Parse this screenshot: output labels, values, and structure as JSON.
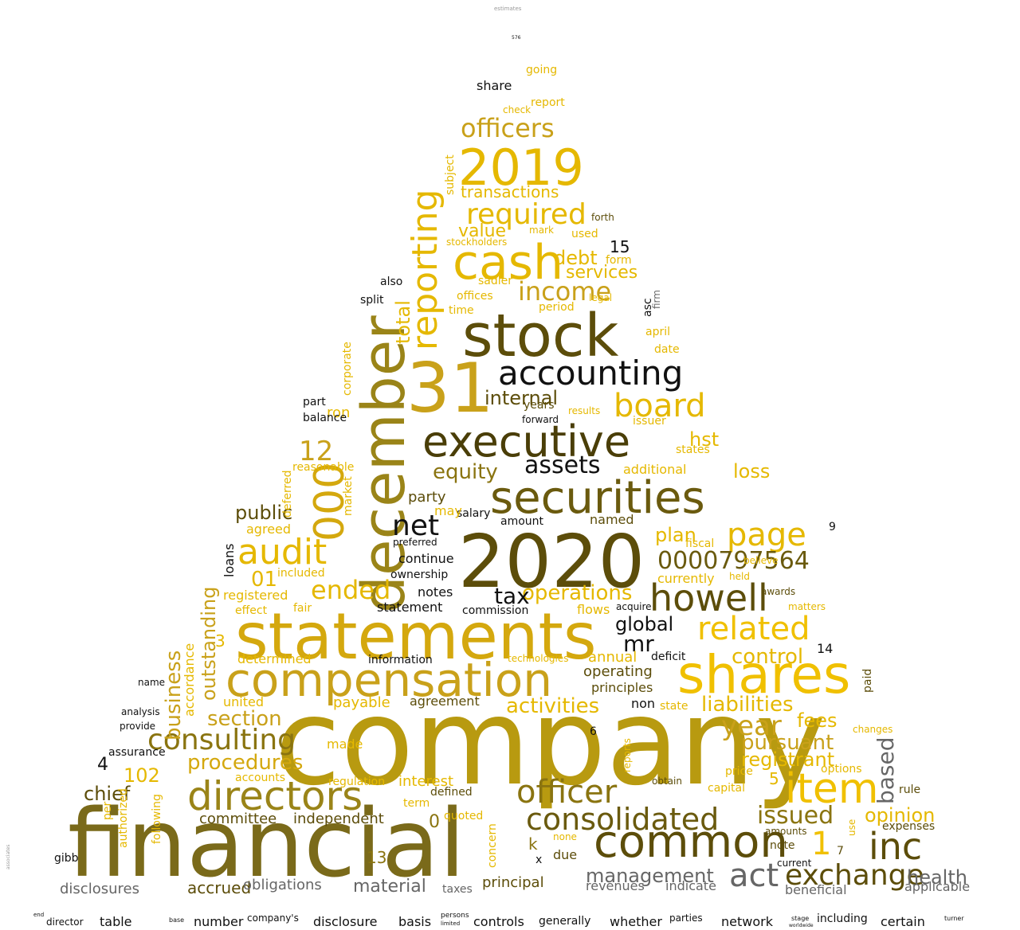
{
  "title": "",
  "palette": {
    "gold": "#e5b800",
    "mustard": "#c9a11a",
    "olive": "#8a7410",
    "dark_olive": "#5c4d0a",
    "black": "#111111",
    "gray": "#666666",
    "light_gold": "#f0d040"
  },
  "words": [
    {
      "text": "company",
      "color": "#b89a10"
    },
    {
      "text": "financial",
      "color": "#7a6a1a"
    },
    {
      "text": "2020",
      "color": "#5c4d0a"
    },
    {
      "text": "statements",
      "color": "#d4a80e"
    },
    {
      "text": "stock",
      "color": "#5c4d0a"
    },
    {
      "text": "31",
      "color": "#c9a11a"
    },
    {
      "text": "december",
      "color": "#9a8418"
    },
    {
      "text": "executive",
      "color": "#4a3e08"
    },
    {
      "text": "shares",
      "color": "#f0c000"
    },
    {
      "text": "compensation",
      "color": "#c9a11a"
    },
    {
      "text": "securities",
      "color": "#6a5a0e"
    },
    {
      "text": "cash",
      "color": "#e5b800"
    },
    {
      "text": "2019",
      "color": "#e5b800"
    },
    {
      "text": "common",
      "color": "#5c4d0a"
    },
    {
      "text": "directors",
      "color": "#9a8418"
    },
    {
      "text": "accounting",
      "color": "#111111"
    },
    {
      "text": "item",
      "color": "#f0c000"
    },
    {
      "text": "howell",
      "color": "#5c4d0a"
    },
    {
      "text": "reporting",
      "color": "#e5b800"
    },
    {
      "text": "000",
      "color": "#d4a80e"
    },
    {
      "text": "inc",
      "color": "#5c4d0a"
    },
    {
      "text": "consolidated",
      "color": "#6a5a0e"
    },
    {
      "text": "officer",
      "color": "#8a7410"
    },
    {
      "text": "exchange",
      "color": "#5c4d0a"
    },
    {
      "text": "board",
      "color": "#e5b800"
    },
    {
      "text": "related",
      "color": "#f0c000"
    },
    {
      "text": "audit",
      "color": "#e5b800"
    },
    {
      "text": "act",
      "color": "#666666"
    },
    {
      "text": "page",
      "color": "#e5b800"
    },
    {
      "text": "officers",
      "color": "#c9a11a"
    },
    {
      "text": "required",
      "color": "#e5b800"
    },
    {
      "text": "net",
      "color": "#111111"
    },
    {
      "text": "0000797564",
      "color": "#6a5a0e"
    },
    {
      "text": "consulting",
      "color": "#8a7410"
    },
    {
      "text": "assets",
      "color": "#111111"
    },
    {
      "text": "management",
      "color": "#666666"
    },
    {
      "text": "issued",
      "color": "#8a7410"
    },
    {
      "text": "year",
      "color": "#c9a11a"
    },
    {
      "text": "ended",
      "color": "#e5b800"
    },
    {
      "text": "income",
      "color": "#c9a11a"
    },
    {
      "text": "procedures",
      "color": "#d4a80e"
    },
    {
      "text": "liabilities",
      "color": "#e5b800"
    },
    {
      "text": "section",
      "color": "#c9a11a"
    },
    {
      "text": "activities",
      "color": "#e5b800"
    },
    {
      "text": "operations",
      "color": "#e5b800"
    },
    {
      "text": "equity",
      "color": "#8a7410"
    },
    {
      "text": "based",
      "color": "#666666"
    },
    {
      "text": "control",
      "color": "#e5b800"
    },
    {
      "text": "health",
      "color": "#666666"
    },
    {
      "text": "pursuant",
      "color": "#c9a11a"
    },
    {
      "text": "registrant",
      "color": "#e5b800"
    },
    {
      "text": "opinion",
      "color": "#e5b800"
    },
    {
      "text": "tax",
      "color": "#111111"
    },
    {
      "text": "debt",
      "color": "#e5b800"
    },
    {
      "text": "public",
      "color": "#5c4d0a"
    },
    {
      "text": "business",
      "color": "#c9a11a"
    },
    {
      "text": "outstanding",
      "color": "#c9a11a"
    },
    {
      "text": "mr",
      "color": "#111111"
    },
    {
      "text": "global",
      "color": "#111111"
    },
    {
      "text": "chief",
      "color": "#5c4d0a"
    },
    {
      "text": "internal",
      "color": "#5c4d0a"
    },
    {
      "text": "total",
      "color": "#e5b800"
    },
    {
      "text": "transactions",
      "color": "#e5b800"
    },
    {
      "text": "value",
      "color": "#e5b800"
    },
    {
      "text": "hst",
      "color": "#e5b800"
    },
    {
      "text": "loss",
      "color": "#e5b800"
    },
    {
      "text": "fees",
      "color": "#e5b800"
    },
    {
      "text": "plan",
      "color": "#e5b800"
    },
    {
      "text": "services",
      "color": "#e5b800"
    },
    {
      "text": "12",
      "color": "#c9a11a"
    },
    {
      "text": "01",
      "color": "#e5b800"
    },
    {
      "text": "102",
      "color": "#e5b800"
    },
    {
      "text": "1",
      "color": "#f0c000"
    },
    {
      "text": "4",
      "color": "#111111"
    },
    {
      "text": "5",
      "color": "#e5b800"
    },
    {
      "text": "15",
      "color": "#111111"
    },
    {
      "text": "14",
      "color": "#111111"
    },
    {
      "text": "13",
      "color": "#8a7410"
    },
    {
      "text": "0",
      "color": "#8a7410"
    },
    {
      "text": "9",
      "color": "#111111"
    },
    {
      "text": "6",
      "color": "#111111"
    },
    {
      "text": "7",
      "color": "#5c4d0a"
    },
    {
      "text": "3",
      "color": "#e5b800"
    },
    {
      "text": "k",
      "color": "#8a7410"
    },
    {
      "text": "x",
      "color": "#111111"
    },
    {
      "text": "committee",
      "color": "#5c4d0a"
    },
    {
      "text": "independent",
      "color": "#5c4d0a"
    },
    {
      "text": "accrued",
      "color": "#5c4d0a"
    },
    {
      "text": "obligations",
      "color": "#666666"
    },
    {
      "text": "material",
      "color": "#666666"
    },
    {
      "text": "disclosures",
      "color": "#666666"
    },
    {
      "text": "principal",
      "color": "#5c4d0a"
    },
    {
      "text": "revenues",
      "color": "#666666"
    },
    {
      "text": "indicate",
      "color": "#666666"
    },
    {
      "text": "beneficial",
      "color": "#666666"
    },
    {
      "text": "applicable",
      "color": "#666666"
    },
    {
      "text": "taxes",
      "color": "#666666"
    },
    {
      "text": "table",
      "color": "#111111"
    },
    {
      "text": "number",
      "color": "#111111"
    },
    {
      "text": "company's",
      "color": "#111111"
    },
    {
      "text": "disclosure",
      "color": "#111111"
    },
    {
      "text": "basis",
      "color": "#111111"
    },
    {
      "text": "controls",
      "color": "#111111"
    },
    {
      "text": "generally",
      "color": "#111111"
    },
    {
      "text": "whether",
      "color": "#111111"
    },
    {
      "text": "parties",
      "color": "#111111"
    },
    {
      "text": "network",
      "color": "#111111"
    },
    {
      "text": "including",
      "color": "#111111"
    },
    {
      "text": "certain",
      "color": "#111111"
    },
    {
      "text": "director",
      "color": "#111111"
    },
    {
      "text": "persons",
      "color": "#111111"
    },
    {
      "text": "limited",
      "color": "#111111"
    },
    {
      "text": "base",
      "color": "#111111"
    },
    {
      "text": "end",
      "color": "#111111"
    },
    {
      "text": "stage",
      "color": "#111111"
    },
    {
      "text": "worldwide",
      "color": "#111111"
    },
    {
      "text": "turner",
      "color": "#111111"
    },
    {
      "text": "agreement",
      "color": "#5c4d0a"
    },
    {
      "text": "payable",
      "color": "#e5b800"
    },
    {
      "text": "united",
      "color": "#e5b800"
    },
    {
      "text": "determined",
      "color": "#e5b800"
    },
    {
      "text": "annual",
      "color": "#e5b800"
    },
    {
      "text": "operating",
      "color": "#5c4d0a"
    },
    {
      "text": "principles",
      "color": "#5c4d0a"
    },
    {
      "text": "non",
      "color": "#111111"
    },
    {
      "text": "state",
      "color": "#e5b800"
    },
    {
      "text": "statement",
      "color": "#111111"
    },
    {
      "text": "commission",
      "color": "#111111"
    },
    {
      "text": "notes",
      "color": "#111111"
    },
    {
      "text": "ownership",
      "color": "#111111"
    },
    {
      "text": "continue",
      "color": "#111111"
    },
    {
      "text": "amount",
      "color": "#111111"
    },
    {
      "text": "named",
      "color": "#5c4d0a"
    },
    {
      "text": "salary",
      "color": "#111111"
    },
    {
      "text": "party",
      "color": "#5c4d0a"
    },
    {
      "text": "may",
      "color": "#e5b800"
    },
    {
      "text": "preferred",
      "color": "#111111"
    },
    {
      "text": "information",
      "color": "#111111"
    },
    {
      "text": "regulation",
      "color": "#e5b800"
    },
    {
      "text": "interest",
      "color": "#e5b800"
    },
    {
      "text": "defined",
      "color": "#5c4d0a"
    },
    {
      "text": "term",
      "color": "#e5b800"
    },
    {
      "text": "quoted",
      "color": "#e5b800"
    },
    {
      "text": "due",
      "color": "#5c4d0a"
    },
    {
      "text": "none",
      "color": "#e5b800"
    },
    {
      "text": "accounts",
      "color": "#e5b800"
    },
    {
      "text": "made",
      "color": "#e5b800"
    },
    {
      "text": "assurance",
      "color": "#111111"
    },
    {
      "text": "analysis",
      "color": "#111111"
    },
    {
      "text": "provide",
      "color": "#111111"
    },
    {
      "text": "name",
      "color": "#111111"
    },
    {
      "text": "gibb",
      "color": "#111111"
    },
    {
      "text": "per",
      "color": "#e5b800"
    },
    {
      "text": "authorized",
      "color": "#e5b800"
    },
    {
      "text": "following",
      "color": "#e5b800"
    },
    {
      "text": "accordance",
      "color": "#e5b800"
    },
    {
      "text": "loans",
      "color": "#111111"
    },
    {
      "text": "registered",
      "color": "#e5b800"
    },
    {
      "text": "effect",
      "color": "#e5b800"
    },
    {
      "text": "fair",
      "color": "#e5b800"
    },
    {
      "text": "included",
      "color": "#e5b800"
    },
    {
      "text": "agreed",
      "color": "#e5b800"
    },
    {
      "text": "deferred",
      "color": "#e5b800"
    },
    {
      "text": "reasonable",
      "color": "#e5b800"
    },
    {
      "text": "market",
      "color": "#e5b800"
    },
    {
      "text": "corporate",
      "color": "#e5b800"
    },
    {
      "text": "ron",
      "color": "#e5b800"
    },
    {
      "text": "part",
      "color": "#111111"
    },
    {
      "text": "balance",
      "color": "#111111"
    },
    {
      "text": "split",
      "color": "#111111"
    },
    {
      "text": "also",
      "color": "#111111"
    },
    {
      "text": "years",
      "color": "#5c4d0a"
    },
    {
      "text": "forward",
      "color": "#111111"
    },
    {
      "text": "results",
      "color": "#e5b800"
    },
    {
      "text": "date",
      "color": "#e5b800"
    },
    {
      "text": "april",
      "color": "#e5b800"
    },
    {
      "text": "issuer",
      "color": "#e5b800"
    },
    {
      "text": "states",
      "color": "#e5b800"
    },
    {
      "text": "additional",
      "color": "#e5b800"
    },
    {
      "text": "fiscal",
      "color": "#e5b800"
    },
    {
      "text": "currently",
      "color": "#e5b800"
    },
    {
      "text": "believe",
      "color": "#e5b800"
    },
    {
      "text": "held",
      "color": "#e5b800"
    },
    {
      "text": "awards",
      "color": "#5c4d0a"
    },
    {
      "text": "matters",
      "color": "#e5b800"
    },
    {
      "text": "flows",
      "color": "#e5b800"
    },
    {
      "text": "acquire",
      "color": "#111111"
    },
    {
      "text": "deficit",
      "color": "#111111"
    },
    {
      "text": "technologies",
      "color": "#e5b800"
    },
    {
      "text": "period",
      "color": "#e5b800"
    },
    {
      "text": "legal",
      "color": "#e5b800"
    },
    {
      "text": "form",
      "color": "#e5b800"
    },
    {
      "text": "used",
      "color": "#e5b800"
    },
    {
      "text": "forth",
      "color": "#5c4d0a"
    },
    {
      "text": "mark",
      "color": "#e5b800"
    },
    {
      "text": "stockholders",
      "color": "#e5b800"
    },
    {
      "text": "sadler",
      "color": "#e5b800"
    },
    {
      "text": "offices",
      "color": "#e5b800"
    },
    {
      "text": "time",
      "color": "#e5b800"
    },
    {
      "text": "report",
      "color": "#e5b800"
    },
    {
      "text": "check",
      "color": "#e5b800"
    },
    {
      "text": "going",
      "color": "#e5b800"
    },
    {
      "text": "share",
      "color": "#111111"
    },
    {
      "text": "subject",
      "color": "#e5b800"
    },
    {
      "text": "asc",
      "color": "#111111"
    },
    {
      "text": "firm",
      "color": "#666666"
    },
    {
      "text": "capital",
      "color": "#e5b800"
    },
    {
      "text": "price",
      "color": "#e5b800"
    },
    {
      "text": "options",
      "color": "#e5b800"
    },
    {
      "text": "note",
      "color": "#5c4d0a"
    },
    {
      "text": "amounts",
      "color": "#5c4d0a"
    },
    {
      "text": "expenses",
      "color": "#5c4d0a"
    },
    {
      "text": "rule",
      "color": "#5c4d0a"
    },
    {
      "text": "changes",
      "color": "#e5b800"
    },
    {
      "text": "current",
      "color": "#111111"
    },
    {
      "text": "use",
      "color": "#e5b800"
    },
    {
      "text": "paid",
      "color": "#5c4d0a"
    },
    {
      "text": "concern",
      "color": "#e5b800"
    },
    {
      "text": "reports",
      "color": "#e5b800"
    },
    {
      "text": "obtain",
      "color": "#5c4d0a"
    },
    {
      "text": "estimates",
      "color": "#999999"
    },
    {
      "text": "associates",
      "color": "#999999"
    },
    {
      "text": "576",
      "color": "#111111"
    }
  ]
}
